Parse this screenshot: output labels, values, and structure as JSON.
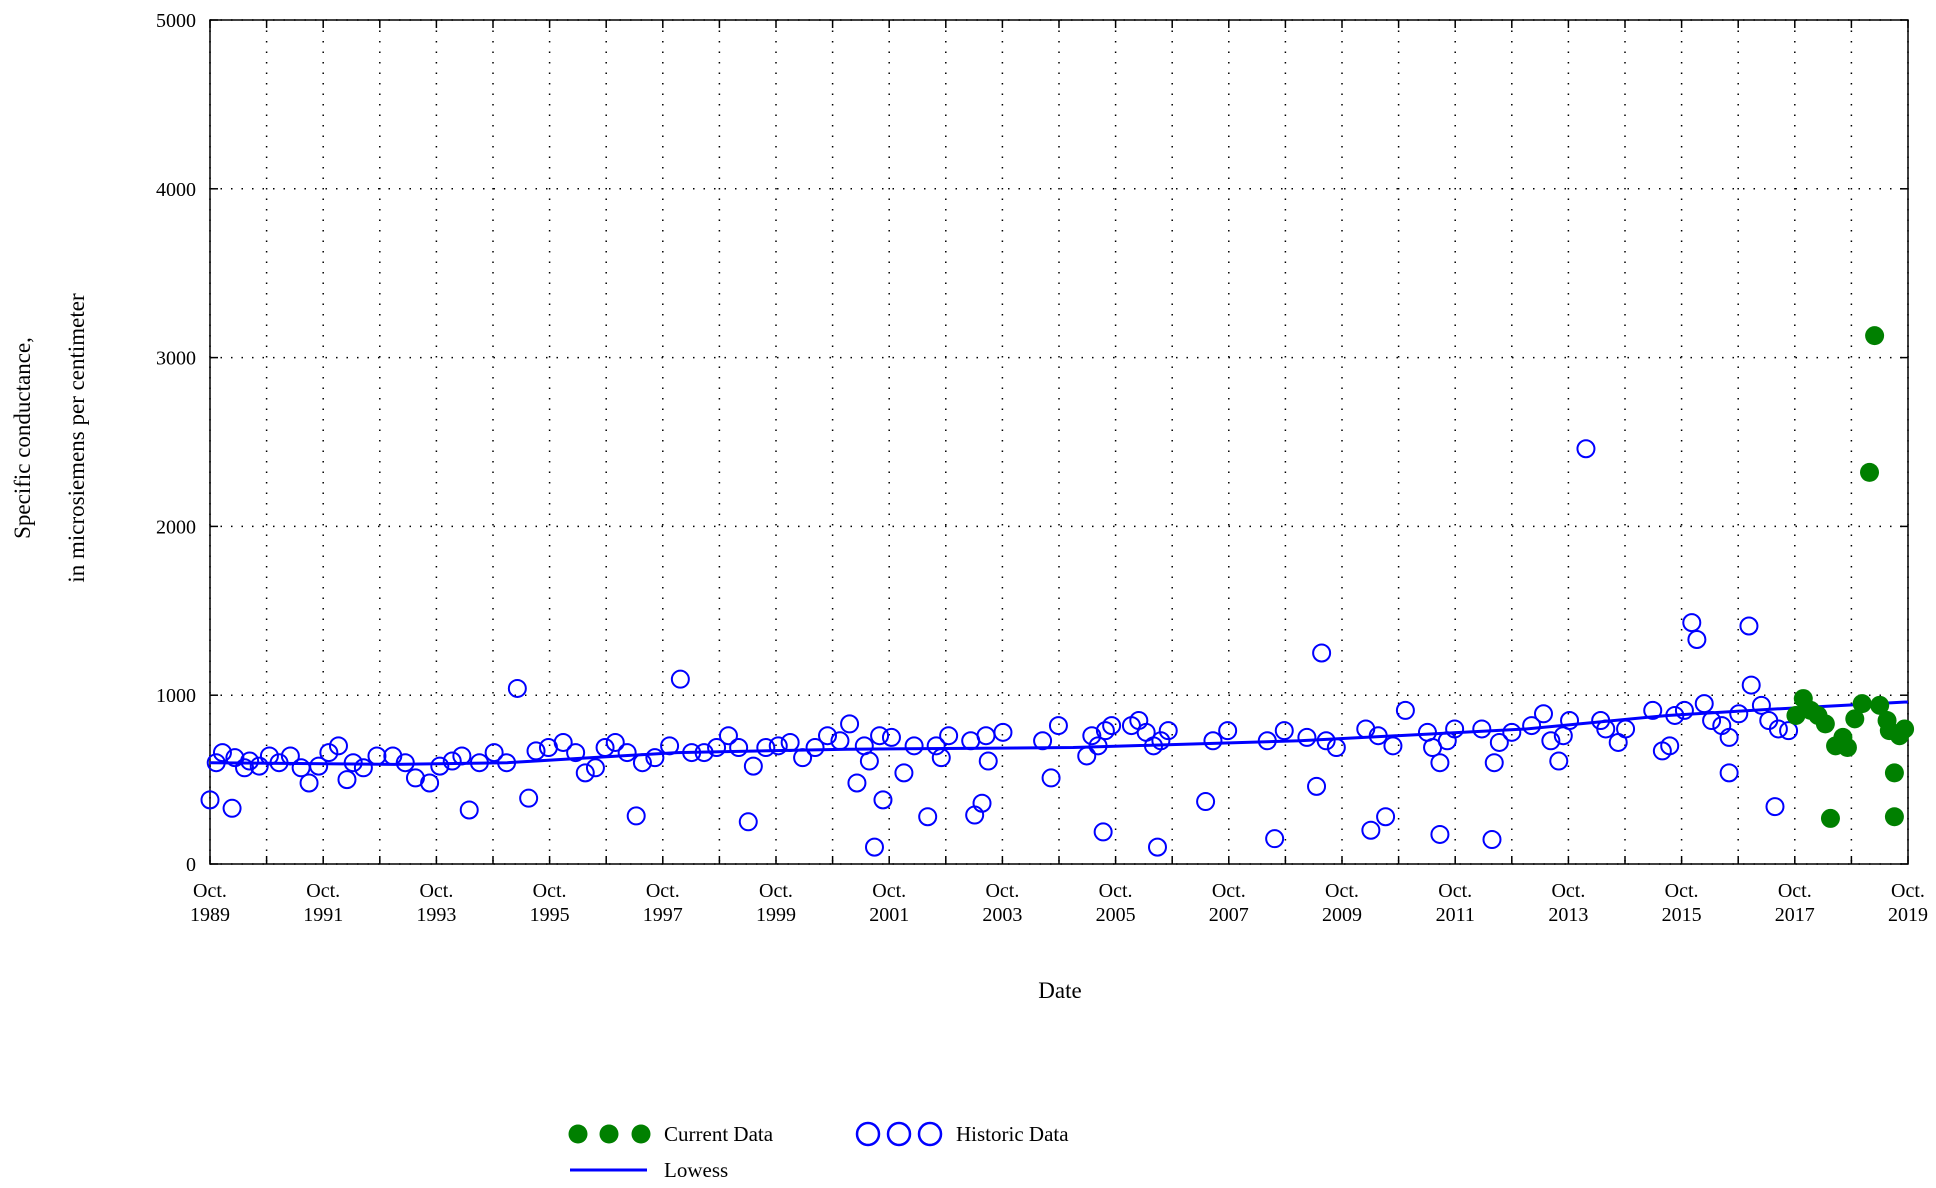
{
  "chart_data": {
    "type": "scatter",
    "xlabel": "Date",
    "ylabel": [
      "Specific conductance,",
      "in microsiemens per centimeter"
    ],
    "xlim": [
      1989.75,
      2019.75
    ],
    "ylim": [
      0,
      5000
    ],
    "xticks": [
      {
        "value": 1989.75,
        "label": "Oct. 1989"
      },
      {
        "value": 1991.75,
        "label": "Oct. 1991"
      },
      {
        "value": 1993.75,
        "label": "Oct. 1993"
      },
      {
        "value": 1995.75,
        "label": "Oct. 1995"
      },
      {
        "value": 1997.75,
        "label": "Oct. 1997"
      },
      {
        "value": 1999.75,
        "label": "Oct. 1999"
      },
      {
        "value": 2001.75,
        "label": "Oct. 2001"
      },
      {
        "value": 2003.75,
        "label": "Oct. 2003"
      },
      {
        "value": 2005.75,
        "label": "Oct. 2005"
      },
      {
        "value": 2007.75,
        "label": "Oct. 2007"
      },
      {
        "value": 2009.75,
        "label": "Oct. 2009"
      },
      {
        "value": 2011.75,
        "label": "Oct. 2011"
      },
      {
        "value": 2013.75,
        "label": "Oct. 2013"
      },
      {
        "value": 2015.75,
        "label": "Oct. 2015"
      },
      {
        "value": 2017.75,
        "label": "Oct. 2017"
      },
      {
        "value": 2019.75,
        "label": "Oct. 2019"
      }
    ],
    "x_minor_ticks": [
      1990.75,
      1992.75,
      1994.75,
      1996.75,
      1998.75,
      2000.75,
      2002.75,
      2004.75,
      2006.75,
      2008.75,
      2010.75,
      2012.75,
      2014.75,
      2016.75,
      2018.75
    ],
    "yticks": [
      0,
      1000,
      2000,
      3000,
      4000,
      5000
    ],
    "grid": true,
    "legend": "bottom",
    "series": [
      {
        "name": "Current Data",
        "color": "#008000",
        "marker": "filled",
        "x": [
          2017.77,
          2017.9,
          2018.03,
          2018.16,
          2018.29,
          2018.38,
          2018.47,
          2018.6,
          2018.68,
          2018.81,
          2018.94,
          2019.07,
          2019.16,
          2019.25,
          2019.38,
          2019.42,
          2019.51,
          2019.51,
          2019.6,
          2019.69
        ],
        "values": [
          880,
          980,
          910,
          880,
          830,
          270,
          700,
          750,
          690,
          860,
          950,
          2320,
          3130,
          940,
          850,
          790,
          540,
          280,
          760,
          800
        ]
      },
      {
        "name": "Historic Data",
        "color": "#0000ff",
        "marker": "open",
        "x": [
          1989.75,
          1989.86,
          1989.97,
          1990.14,
          1990.19,
          1990.36,
          1990.45,
          1990.62,
          1990.8,
          1990.97,
          1991.17,
          1991.36,
          1991.5,
          1991.67,
          1991.85,
          1992.02,
          1992.17,
          1992.28,
          1992.46,
          1992.7,
          1992.98,
          1993.2,
          1993.38,
          1993.63,
          1993.81,
          1994.03,
          1994.2,
          1994.33,
          1994.51,
          1994.77,
          1994.99,
          1995.18,
          1995.38,
          1995.51,
          1995.73,
          1995.99,
          1996.21,
          1996.38,
          1996.56,
          1996.73,
          1996.91,
          1997.12,
          1997.28,
          1997.39,
          1997.61,
          1997.87,
          1998.06,
          1998.26,
          1998.48,
          1998.7,
          1998.91,
          1999.09,
          1999.26,
          1999.35,
          1999.57,
          1999.79,
          2000.0,
          2000.22,
          2000.44,
          2000.66,
          2000.88,
          2001.05,
          2001.18,
          2001.31,
          2001.4,
          2001.49,
          2001.58,
          2001.64,
          2001.79,
          2002.01,
          2002.19,
          2002.43,
          2002.58,
          2002.67,
          2002.8,
          2003.19,
          2003.26,
          2003.39,
          2003.46,
          2003.5,
          2003.76,
          2004.46,
          2004.61,
          2004.74,
          2005.24,
          2005.33,
          2005.44,
          2005.53,
          2005.57,
          2005.68,
          2006.03,
          2006.16,
          2006.29,
          2006.42,
          2006.49,
          2006.55,
          2006.68,
          2007.34,
          2007.47,
          2007.73,
          2008.43,
          2008.56,
          2008.73,
          2009.13,
          2009.3,
          2009.39,
          2009.47,
          2009.65,
          2010.17,
          2010.26,
          2010.39,
          2010.52,
          2010.65,
          2010.87,
          2011.26,
          2011.35,
          2011.48,
          2011.48,
          2011.61,
          2011.74,
          2012.22,
          2012.4,
          2012.44,
          2012.53,
          2012.75,
          2013.1,
          2013.31,
          2013.44,
          2013.58,
          2013.66,
          2013.77,
          2014.06,
          2014.32,
          2014.41,
          2014.63,
          2014.76,
          2015.24,
          2015.41,
          2015.54,
          2015.63,
          2015.8,
          2015.93,
          2016.02,
          2016.15,
          2016.28,
          2016.46,
          2016.59,
          2016.59,
          2016.76,
          2016.94,
          2016.98,
          2017.16,
          2017.29,
          2017.4,
          2017.46,
          2017.64
        ],
        "values": [
          380,
          600,
          660,
          330,
          630,
          570,
          610,
          580,
          640,
          600,
          640,
          570,
          480,
          580,
          660,
          700,
          500,
          600,
          570,
          640,
          640,
          600,
          510,
          480,
          580,
          610,
          640,
          320,
          600,
          660,
          600,
          1040,
          390,
          670,
          690,
          720,
          660,
          540,
          570,
          690,
          720,
          660,
          285,
          600,
          630,
          700,
          1095,
          660,
          660,
          690,
          760,
          690,
          250,
          580,
          690,
          700,
          720,
          630,
          690,
          760,
          730,
          830,
          480,
          700,
          610,
          100,
          760,
          380,
          750,
          540,
          700,
          280,
          700,
          630,
          760,
          730,
          290,
          360,
          760,
          610,
          780,
          730,
          510,
          820,
          640,
          760,
          700,
          190,
          790,
          820,
          820,
          850,
          780,
          700,
          100,
          730,
          790,
          370,
          730,
          790,
          730,
          150,
          790,
          750,
          460,
          1250,
          730,
          690,
          800,
          200,
          760,
          280,
          700,
          910,
          780,
          690,
          600,
          175,
          730,
          800,
          800,
          145,
          600,
          720,
          780,
          820,
          890,
          730,
          610,
          760,
          850,
          2460,
          850,
          800,
          720,
          800,
          910,
          670,
          700,
          880,
          910,
          1430,
          1330,
          950,
          850,
          820,
          540,
          750,
          890,
          1410,
          1060,
          940,
          850,
          340,
          800,
          790
        ]
      },
      {
        "name": "Lowess",
        "color": "#0000ff",
        "marker": "line",
        "x": [
          1989.75,
          1993.0,
          1995.0,
          1998.0,
          2001.0,
          2005.0,
          2009.0,
          2013.0,
          2015.5,
          2017.5,
          2019.75
        ],
        "values": [
          600,
          590,
          600,
          660,
          680,
          690,
          730,
          800,
          880,
          920,
          960
        ]
      }
    ]
  }
}
